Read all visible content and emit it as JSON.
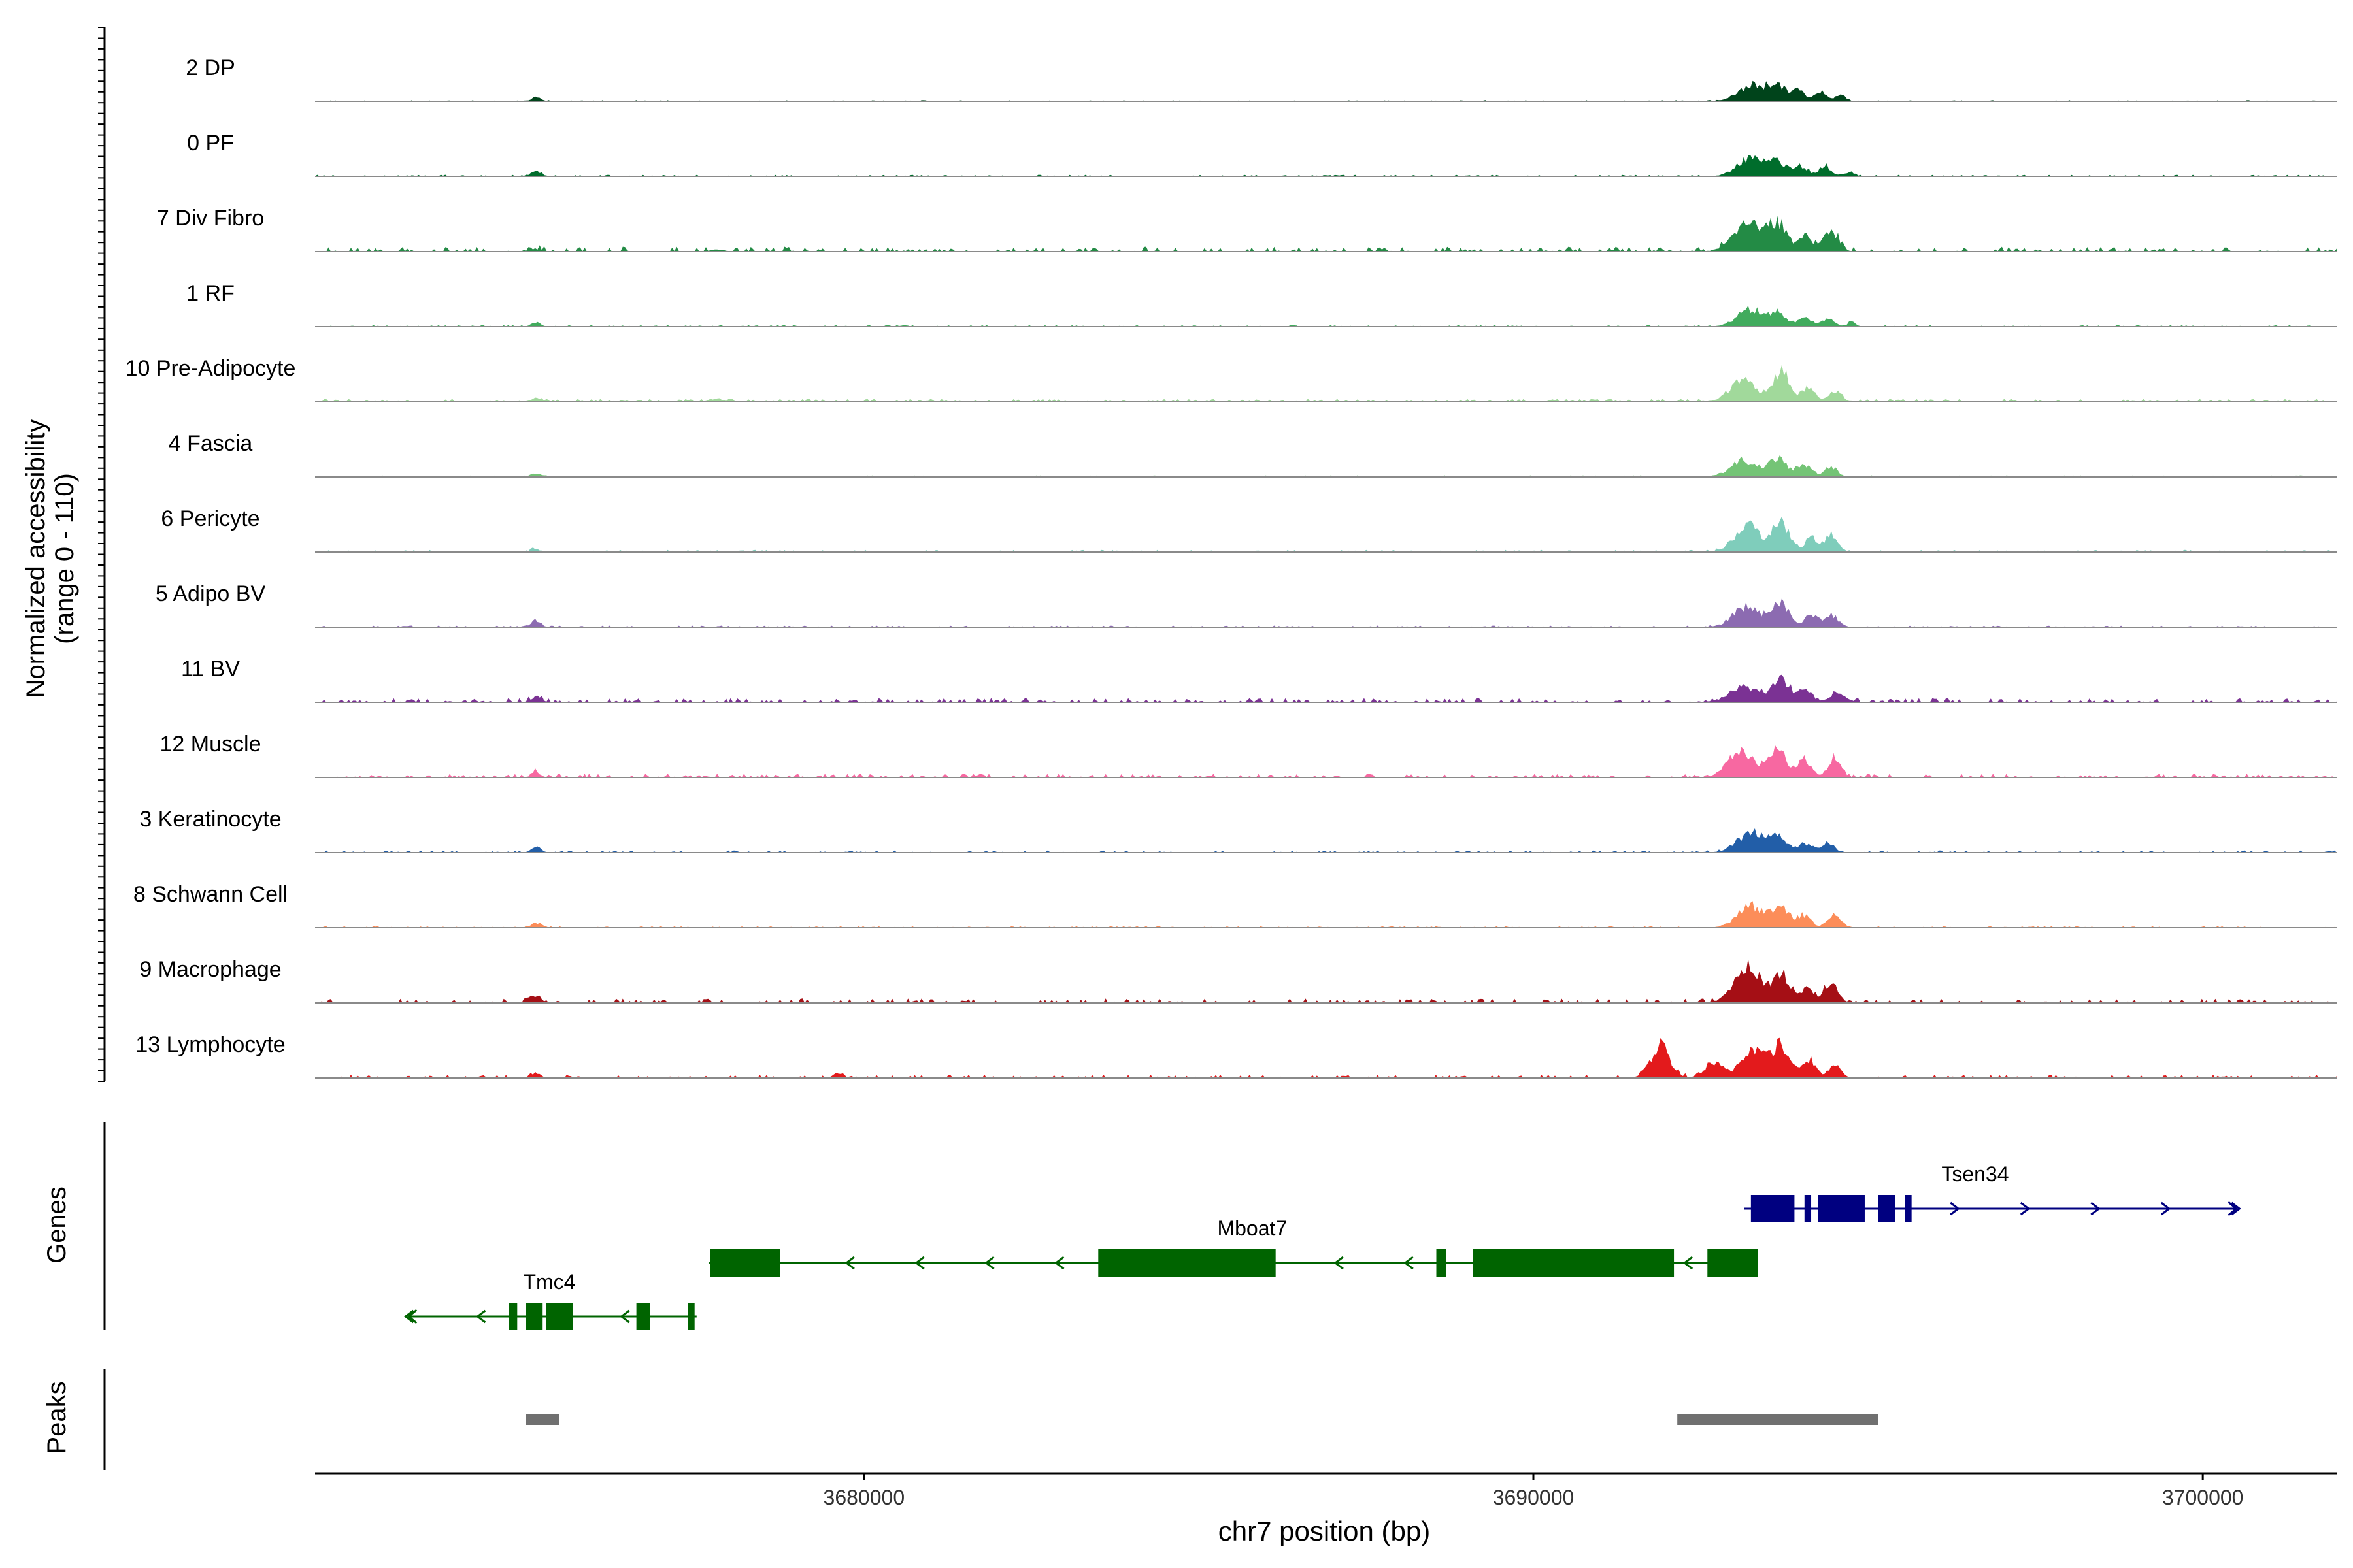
{
  "chart_data": {
    "type": "area",
    "title": "",
    "ylabel": "Normalized accessibility",
    "ylabel_range": "(range 0 - 110)",
    "xlabel": "chr7 position (bp)",
    "xlim": [
      3671800,
      3702000
    ],
    "x_ticks": [
      {
        "value": 3680000,
        "label": "3680000"
      },
      {
        "value": 3690000,
        "label": "3690000"
      },
      {
        "value": 3700000,
        "label": "3700000"
      }
    ],
    "y_range": [
      0,
      110
    ],
    "track_labels": {
      "genes": "Genes",
      "peaks": "Peaks"
    },
    "series": [
      {
        "name": "2 DP",
        "color": "#00441b",
        "base": 0.4,
        "peaks": [
          [
            3693300,
            220,
            24
          ],
          [
            3693650,
            120,
            19
          ],
          [
            3693950,
            100,
            16
          ],
          [
            3694300,
            90,
            15
          ],
          [
            3694600,
            70,
            9
          ],
          [
            3675100,
            70,
            6
          ]
        ]
      },
      {
        "name": "0 PF",
        "color": "#006d2c",
        "base": 0.6,
        "peaks": [
          [
            3693250,
            200,
            27
          ],
          [
            3693650,
            130,
            21
          ],
          [
            3694000,
            100,
            15
          ],
          [
            3694350,
            90,
            15
          ],
          [
            3694700,
            80,
            6
          ],
          [
            3675100,
            80,
            7
          ]
        ]
      },
      {
        "name": "7 Div Fibro",
        "color": "#238b45",
        "base": 1.8,
        "peaks": [
          [
            3693200,
            210,
            42
          ],
          [
            3693650,
            130,
            41
          ],
          [
            3694050,
            110,
            22
          ],
          [
            3694450,
            110,
            31
          ],
          [
            3675100,
            80,
            3
          ],
          [
            3677800,
            90,
            3
          ]
        ]
      },
      {
        "name": "1 RF",
        "color": "#41ab5d",
        "base": 0.6,
        "peaks": [
          [
            3693250,
            200,
            26
          ],
          [
            3693650,
            120,
            17
          ],
          [
            3694050,
            100,
            14
          ],
          [
            3694400,
            90,
            13
          ],
          [
            3694750,
            60,
            7
          ],
          [
            3675100,
            70,
            6
          ]
        ]
      },
      {
        "name": "10 Pre-Adipocyte",
        "color": "#a1d99b",
        "base": 1.2,
        "peaks": [
          [
            3693150,
            200,
            31
          ],
          [
            3693700,
            120,
            46
          ],
          [
            3694100,
            100,
            21
          ],
          [
            3694500,
            100,
            15
          ],
          [
            3675100,
            70,
            6
          ],
          [
            3677800,
            90,
            5
          ]
        ]
      },
      {
        "name": "4 Fascia",
        "color": "#74c476",
        "base": 0.6,
        "peaks": [
          [
            3693150,
            200,
            25
          ],
          [
            3693650,
            130,
            27
          ],
          [
            3694050,
            110,
            17
          ],
          [
            3694450,
            90,
            14
          ],
          [
            3675100,
            70,
            6
          ]
        ]
      },
      {
        "name": "6 Pericyte",
        "color": "#7fcdbb",
        "base": 0.8,
        "peaks": [
          [
            3693200,
            190,
            42
          ],
          [
            3693700,
            120,
            46
          ],
          [
            3694150,
            100,
            20
          ],
          [
            3694450,
            100,
            26
          ],
          [
            3675100,
            70,
            4
          ]
        ]
      },
      {
        "name": "5 Adipo BV",
        "color": "#8c6bb1",
        "base": 0.6,
        "peaks": [
          [
            3693200,
            200,
            33
          ],
          [
            3693700,
            120,
            38
          ],
          [
            3694150,
            90,
            19
          ],
          [
            3694450,
            100,
            18
          ],
          [
            3675100,
            70,
            10
          ]
        ]
      },
      {
        "name": "11 BV",
        "color": "#7b3294",
        "base": 1.6,
        "peaks": [
          [
            3693150,
            220,
            23
          ],
          [
            3693700,
            120,
            36
          ],
          [
            3694050,
            100,
            20
          ],
          [
            3694550,
            110,
            16
          ],
          [
            3675100,
            70,
            8
          ]
        ]
      },
      {
        "name": "12 Muscle",
        "color": "#f768a1",
        "base": 1.4,
        "peaks": [
          [
            3693100,
            190,
            38
          ],
          [
            3693650,
            130,
            43
          ],
          [
            3694050,
            100,
            27
          ],
          [
            3694500,
            90,
            31
          ],
          [
            3675100,
            60,
            8
          ]
        ]
      },
      {
        "name": "3 Keratinocyte",
        "color": "#225ea8",
        "base": 0.8,
        "peaks": [
          [
            3693250,
            200,
            30
          ],
          [
            3693650,
            130,
            20
          ],
          [
            3694050,
            100,
            14
          ],
          [
            3694400,
            90,
            15
          ],
          [
            3675100,
            70,
            8
          ]
        ]
      },
      {
        "name": "8 Schwann Cell",
        "color": "#fc8d59",
        "base": 0.6,
        "peaks": [
          [
            3693250,
            200,
            32
          ],
          [
            3693700,
            130,
            29
          ],
          [
            3694050,
            100,
            18
          ],
          [
            3694500,
            100,
            20
          ],
          [
            3675100,
            70,
            7
          ]
        ]
      },
      {
        "name": "9 Macrophage",
        "color": "#a50f15",
        "base": 1.6,
        "peaks": [
          [
            3693200,
            200,
            52
          ],
          [
            3693700,
            120,
            42
          ],
          [
            3694100,
            100,
            24
          ],
          [
            3694450,
            100,
            28
          ],
          [
            3675100,
            70,
            10
          ]
        ]
      },
      {
        "name": "13 Lymphocyte",
        "color": "#e31a1c",
        "base": 1.2,
        "peaks": [
          [
            3691900,
            150,
            46
          ],
          [
            3692700,
            130,
            24
          ],
          [
            3693300,
            190,
            39
          ],
          [
            3693700,
            120,
            49
          ],
          [
            3694100,
            110,
            27
          ],
          [
            3694500,
            90,
            18
          ],
          [
            3675100,
            60,
            8
          ],
          [
            3679600,
            60,
            7
          ]
        ]
      }
    ],
    "genes": [
      {
        "name": "Tmc4",
        "color": "#006400",
        "strand": "-",
        "start": 3673200,
        "end": 3677500,
        "row": 2,
        "label_x": 3675300,
        "exons": [
          [
            3674700,
            3674820
          ],
          [
            3674950,
            3675200
          ],
          [
            3675250,
            3675650
          ],
          [
            3676600,
            3676800
          ],
          [
            3677370,
            3677470
          ]
        ]
      },
      {
        "name": "Mboat7",
        "color": "#006400",
        "strand": "-",
        "start": 3677700,
        "end": 3693350,
        "row": 1,
        "label_x": 3685800,
        "exons": [
          [
            3677700,
            3678750
          ],
          [
            3683500,
            3686150
          ],
          [
            3688550,
            3688700
          ],
          [
            3689100,
            3692100
          ],
          [
            3692600,
            3693350
          ]
        ]
      },
      {
        "name": "Tsen34",
        "color": "#000080",
        "strand": "+",
        "start": 3693150,
        "end": 3700500,
        "row": 0,
        "label_x": 3696600,
        "exons": [
          [
            3693250,
            3693900
          ],
          [
            3694050,
            3694150
          ],
          [
            3694250,
            3694950
          ],
          [
            3695150,
            3695400
          ],
          [
            3695550,
            3695650
          ]
        ]
      }
    ],
    "peaks": [
      {
        "start": 3674950,
        "end": 3675450
      },
      {
        "start": 3692150,
        "end": 3695150
      }
    ]
  }
}
